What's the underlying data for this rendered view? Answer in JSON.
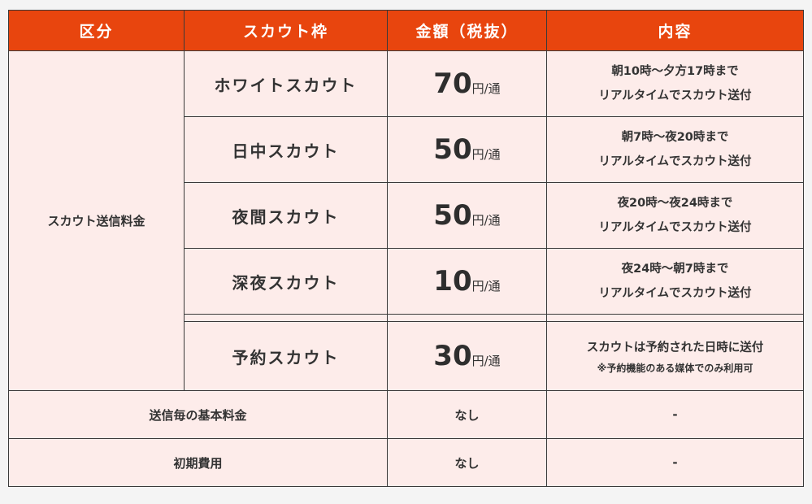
{
  "header": {
    "col1": "区分",
    "col2": "スカウト枠",
    "col3": "金額（税抜）",
    "col4": "内容"
  },
  "category": "スカウト送信料金",
  "plans": [
    {
      "name": "ホワイトスカウト",
      "price": "70",
      "unit": "円/通",
      "desc1": "朝10時～夕方17時まで",
      "desc2": "リアルタイムでスカウト送付"
    },
    {
      "name": "日中スカウト",
      "price": "50",
      "unit": "円/通",
      "desc1": "朝7時～夜20時まで",
      "desc2": "リアルタイムでスカウト送付"
    },
    {
      "name": "夜間スカウト",
      "price": "50",
      "unit": "円/通",
      "desc1": "夜20時～夜24時まで",
      "desc2": "リアルタイムでスカウト送付"
    },
    {
      "name": "深夜スカウト",
      "price": "10",
      "unit": "円/通",
      "desc1": "夜24時～朝7時まで",
      "desc2": "リアルタイムでスカウト送付"
    },
    {
      "name": "予約スカウト",
      "price": "30",
      "unit": "円/通",
      "desc1": "スカウトは予約された日時に送付",
      "desc2": "※予約機能のある媒体でのみ利用可"
    }
  ],
  "footer_rows": [
    {
      "label": "送信毎の基本料金",
      "amount": "なし",
      "content": "-"
    },
    {
      "label": "初期費用",
      "amount": "なし",
      "content": "-"
    }
  ]
}
